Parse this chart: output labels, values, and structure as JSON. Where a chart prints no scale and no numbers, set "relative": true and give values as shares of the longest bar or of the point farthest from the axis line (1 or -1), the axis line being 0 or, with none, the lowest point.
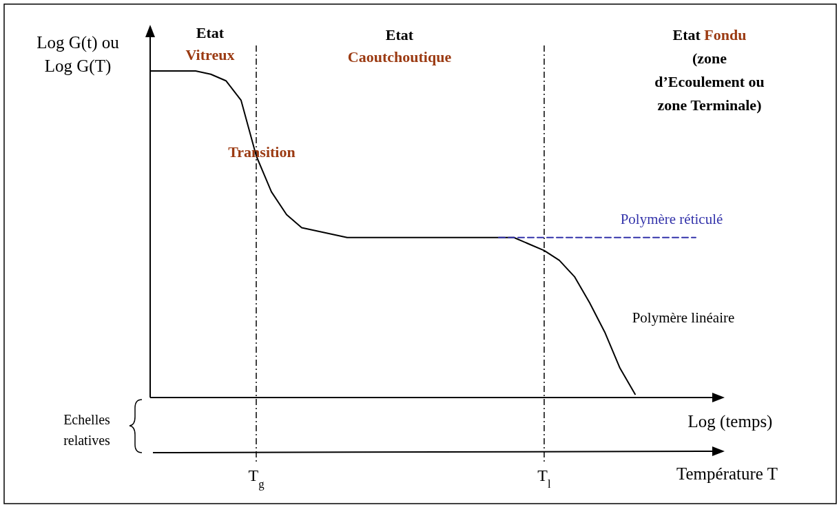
{
  "chart_data": {
    "type": "line",
    "relative": true,
    "ylabel": "Log G(t) ou\nLog G(T)",
    "xlabel": "Log (temps)",
    "tick_labels": "x",
    "categories": [
      null,
      null,
      null,
      null,
      null,
      null,
      null,
      "T$_{g}$",
      null,
      null,
      null,
      null,
      null,
      null,
      null,
      null,
      null,
      null,
      null,
      null,
      null,
      null,
      null,
      null,
      null,
      null,
      "T$_{l}$",
      null,
      null,
      null,
      null,
      null,
      null,
      null,
      null,
      null,
      null
    ],
    "series": [
      {
        "name": "Polymère linéaire",
        "color": "#000000",
        "line_style": "solid",
        "values": [
          1.0,
          1.0,
          1.0,
          1.0,
          0.99,
          0.97,
          0.91,
          0.74,
          0.63,
          0.56,
          0.52,
          0.51,
          0.5,
          0.49,
          0.49,
          0.49,
          0.49,
          0.49,
          0.49,
          0.49,
          0.49,
          0.49,
          0.49,
          0.49,
          0.49,
          0.47,
          0.45,
          0.42,
          0.37,
          0.29,
          0.2,
          0.09,
          0.01,
          null,
          null,
          null,
          null
        ]
      },
      {
        "name": "Polymère réticulé",
        "color": "#3333aa",
        "line_style": "dashed",
        "values": [
          null,
          null,
          null,
          null,
          null,
          null,
          null,
          null,
          null,
          null,
          null,
          null,
          null,
          null,
          null,
          null,
          null,
          null,
          null,
          null,
          null,
          null,
          null,
          0.49,
          0.49,
          0.49,
          0.49,
          0.49,
          0.49,
          0.49,
          0.49,
          0.49,
          0.49,
          0.49,
          0.49,
          0.49,
          0.49
        ]
      }
    ],
    "ref_lines": [
      {
        "axis": "x",
        "value": "T$_{g}$"
      },
      {
        "axis": "x",
        "value": "T$_{l}$"
      }
    ],
    "annotations": [
      "Etat\nVitreux",
      "Transition",
      "Etat\nCaoutchoutique",
      "Etat Fondu\n(zone\nd’Ecoulement ou\nzone Terminale)",
      "Température T",
      "Echelles\nrelatives"
    ]
  }
}
